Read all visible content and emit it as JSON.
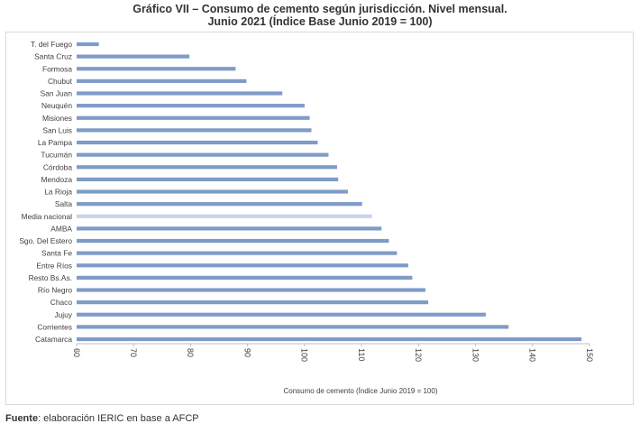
{
  "title_line1": "Gráfico VII – Consumo de cemento según jurisdicción. Nivel mensual.",
  "title_line2": "Junio 2021 (Índice Base Junio 2019 = 100)",
  "source_label": "Fuente",
  "source_text": ": elaboración IERIC en base a AFCP",
  "colors": {
    "bar": "#7f9cc8",
    "highlight": "#c6d4ec"
  },
  "chart_data": {
    "type": "bar",
    "orientation": "horizontal",
    "title": "Gráfico VII – Consumo de cemento según jurisdicción. Nivel mensual. Junio 2021 (Índice Base Junio 2019 = 100)",
    "xlabel": "Consumo de cemento (Índice Junio 2019 = 100)",
    "ylabel": "",
    "xlim": [
      60,
      150
    ],
    "xticks": [
      60,
      70,
      80,
      90,
      100,
      110,
      120,
      130,
      140,
      150
    ],
    "grid": false,
    "legend": "none",
    "highlight_category": "Media nacional",
    "categories": [
      "T. del Fuego",
      "Santa Cruz",
      "Formosa",
      "Chubut",
      "San Juan",
      "Neuquén",
      "Misiones",
      "San Luis",
      "La Pampa",
      "Tucumán",
      "Córdoba",
      "Mendoza",
      "La Rioja",
      "Salta",
      "Media nacional",
      "AMBA",
      "Sgo. Del Estero",
      "Santa Fe",
      "Entre Ríos",
      "Resto Bs.As.",
      "Río Negro",
      "Chaco",
      "Jujuy",
      "Corrientes",
      "Catamarca"
    ],
    "values": [
      63.9,
      79.8,
      87.9,
      89.8,
      96.1,
      100.0,
      100.9,
      101.2,
      102.3,
      104.2,
      105.7,
      105.9,
      107.6,
      110.1,
      111.8,
      113.5,
      114.8,
      116.2,
      118.2,
      118.9,
      121.2,
      121.7,
      131.8,
      135.8,
      148.6
    ]
  }
}
